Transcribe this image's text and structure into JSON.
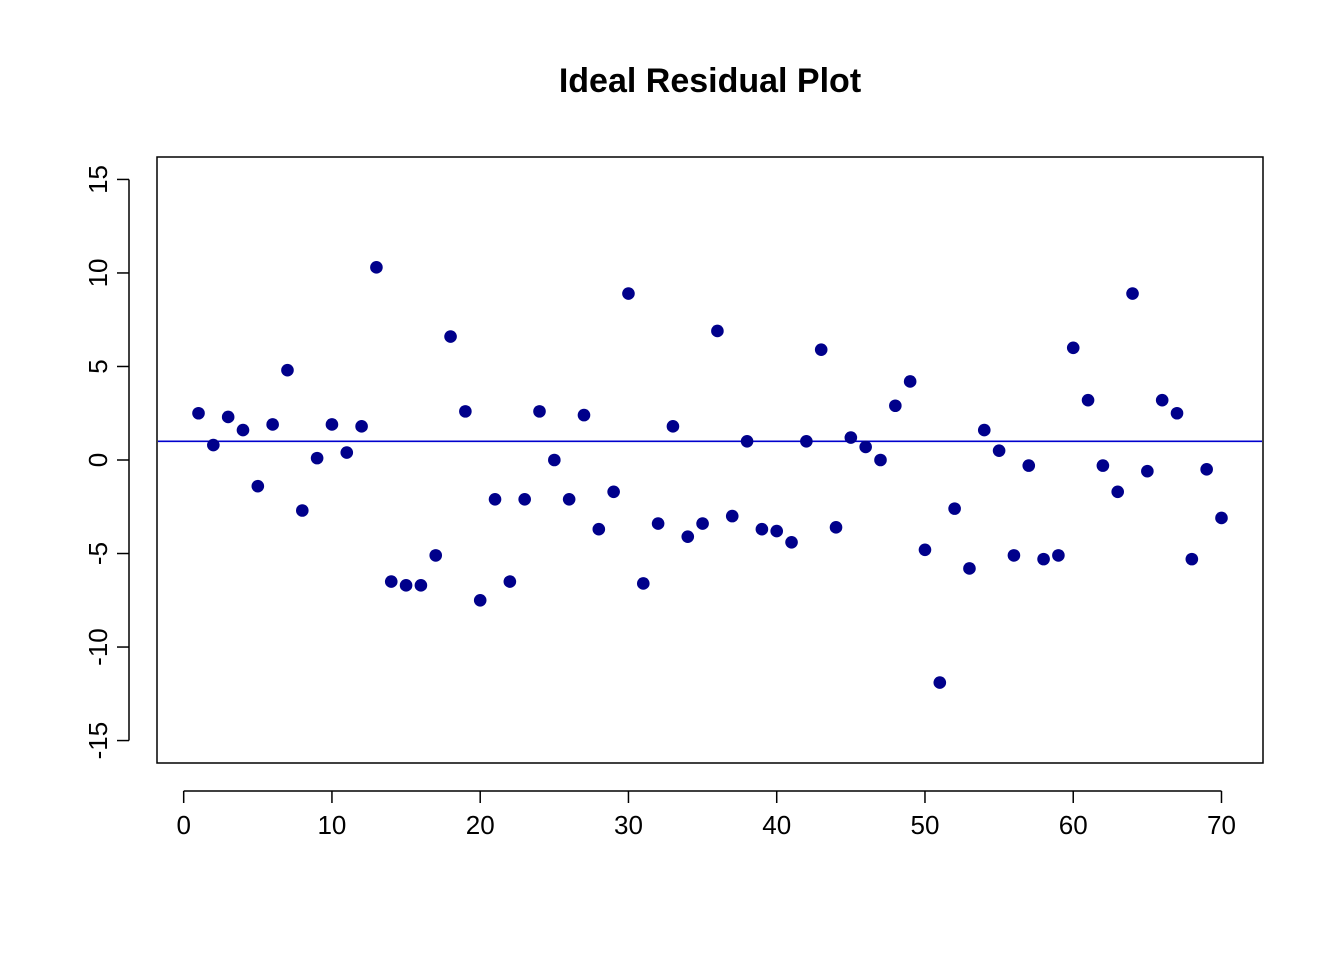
{
  "chart_data": {
    "type": "scatter",
    "title": "Ideal Residual Plot",
    "xlabel": "",
    "ylabel": "",
    "xlim": [
      -1.8,
      72.8
    ],
    "ylim": [
      -16.2,
      16.2
    ],
    "x_ticks": [
      0,
      10,
      20,
      30,
      40,
      50,
      60,
      70
    ],
    "y_ticks": [
      -15,
      -10,
      -5,
      0,
      5,
      10,
      15
    ],
    "x_tick_labels": [
      "0",
      "10",
      "20",
      "30",
      "40",
      "50",
      "60",
      "70"
    ],
    "y_tick_labels": [
      "-15",
      "-10",
      "-5",
      "0",
      "5",
      "10",
      "15"
    ],
    "hline": {
      "y": 1.0,
      "color": "#0000CD"
    },
    "grid": false,
    "point_color": "#00008B",
    "series": [
      {
        "x": [
          1,
          2,
          3,
          4,
          5,
          6,
          7,
          8,
          9,
          10,
          11,
          12,
          13,
          14,
          15,
          16,
          17,
          18,
          19,
          20,
          21,
          22,
          23,
          24,
          25,
          26,
          27,
          28,
          29,
          30,
          31,
          32,
          33,
          34,
          35,
          36,
          37,
          38,
          39,
          40,
          41,
          42,
          43,
          44,
          45,
          46,
          47,
          48,
          49,
          50,
          51,
          52,
          53,
          54,
          55,
          56,
          57,
          58,
          59,
          60,
          61,
          62,
          63,
          64,
          65,
          66,
          67,
          68,
          69,
          70
        ],
        "y": [
          2.5,
          0.8,
          2.3,
          1.6,
          -1.4,
          1.9,
          4.8,
          -2.7,
          0.1,
          1.9,
          0.4,
          1.8,
          10.3,
          -6.5,
          -6.7,
          -6.7,
          -5.1,
          6.6,
          2.6,
          -7.5,
          -2.1,
          -6.5,
          -2.1,
          2.6,
          0.0,
          -2.1,
          2.4,
          -3.7,
          -1.7,
          8.9,
          -6.6,
          -3.4,
          1.8,
          -4.1,
          -3.4,
          6.9,
          -3.0,
          1.0,
          -3.7,
          -3.8,
          -4.4,
          1.0,
          5.9,
          -3.6,
          1.2,
          0.7,
          0.0,
          2.9,
          4.2,
          -4.8,
          -11.9,
          -2.6,
          -5.8,
          1.6,
          0.5,
          -5.1,
          -0.3,
          -5.3,
          -5.1,
          6.0,
          3.2,
          -0.3,
          -1.7,
          8.9,
          -0.6,
          3.2,
          2.5,
          -5.3,
          -0.5,
          -3.1
        ]
      }
    ]
  }
}
